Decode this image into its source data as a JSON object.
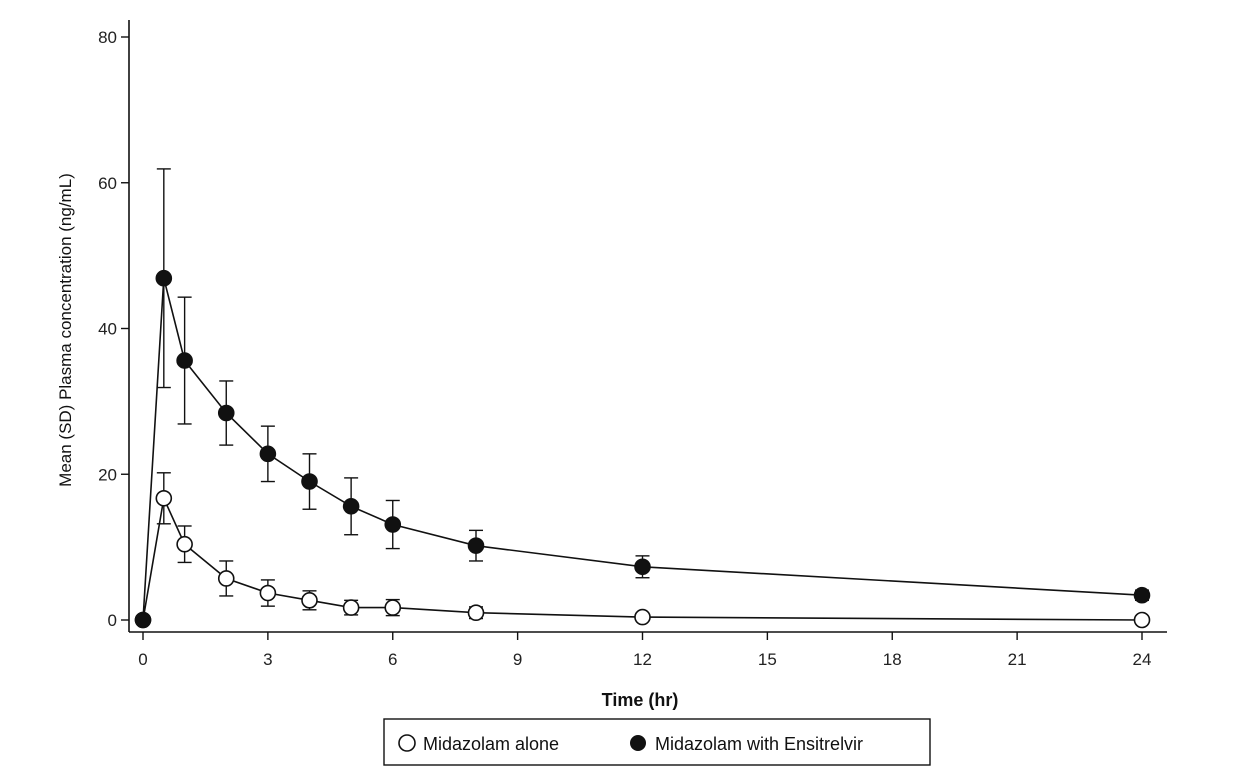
{
  "chart_data": {
    "type": "line",
    "xlabel": "Time (hr)",
    "ylabel": "Mean (SD) Plasma concentration (ng/mL)",
    "xlim": [
      0,
      24
    ],
    "ylim": [
      0,
      80
    ],
    "xticks": [
      0,
      3,
      6,
      9,
      12,
      15,
      18,
      21,
      24
    ],
    "yticks": [
      0,
      20,
      40,
      60,
      80
    ],
    "grid": false,
    "legend_position": "bottom-center",
    "series": [
      {
        "name": "Midazolam alone",
        "marker": "open-circle",
        "color": "#111111",
        "x": [
          0,
          0.5,
          1,
          2,
          3,
          4,
          5,
          6,
          8,
          12,
          24
        ],
        "y": [
          0,
          16.7,
          10.4,
          5.7,
          3.7,
          2.7,
          1.7,
          1.7,
          1.0,
          0.4,
          0.0
        ],
        "sd": [
          0,
          3.5,
          2.5,
          2.4,
          1.8,
          1.3,
          1.0,
          1.1,
          0.8,
          0.3,
          0.1
        ]
      },
      {
        "name": "Midazolam with Ensitrelvir",
        "marker": "filled-circle",
        "color": "#111111",
        "x": [
          0,
          0.5,
          1,
          2,
          3,
          4,
          5,
          6,
          8,
          12,
          24
        ],
        "y": [
          0,
          46.9,
          35.6,
          28.4,
          22.8,
          19.0,
          15.6,
          13.1,
          10.2,
          7.3,
          3.4
        ],
        "sd": [
          0,
          15.0,
          8.7,
          4.4,
          3.8,
          3.8,
          3.9,
          3.3,
          2.1,
          1.5,
          0.7
        ]
      }
    ]
  }
}
